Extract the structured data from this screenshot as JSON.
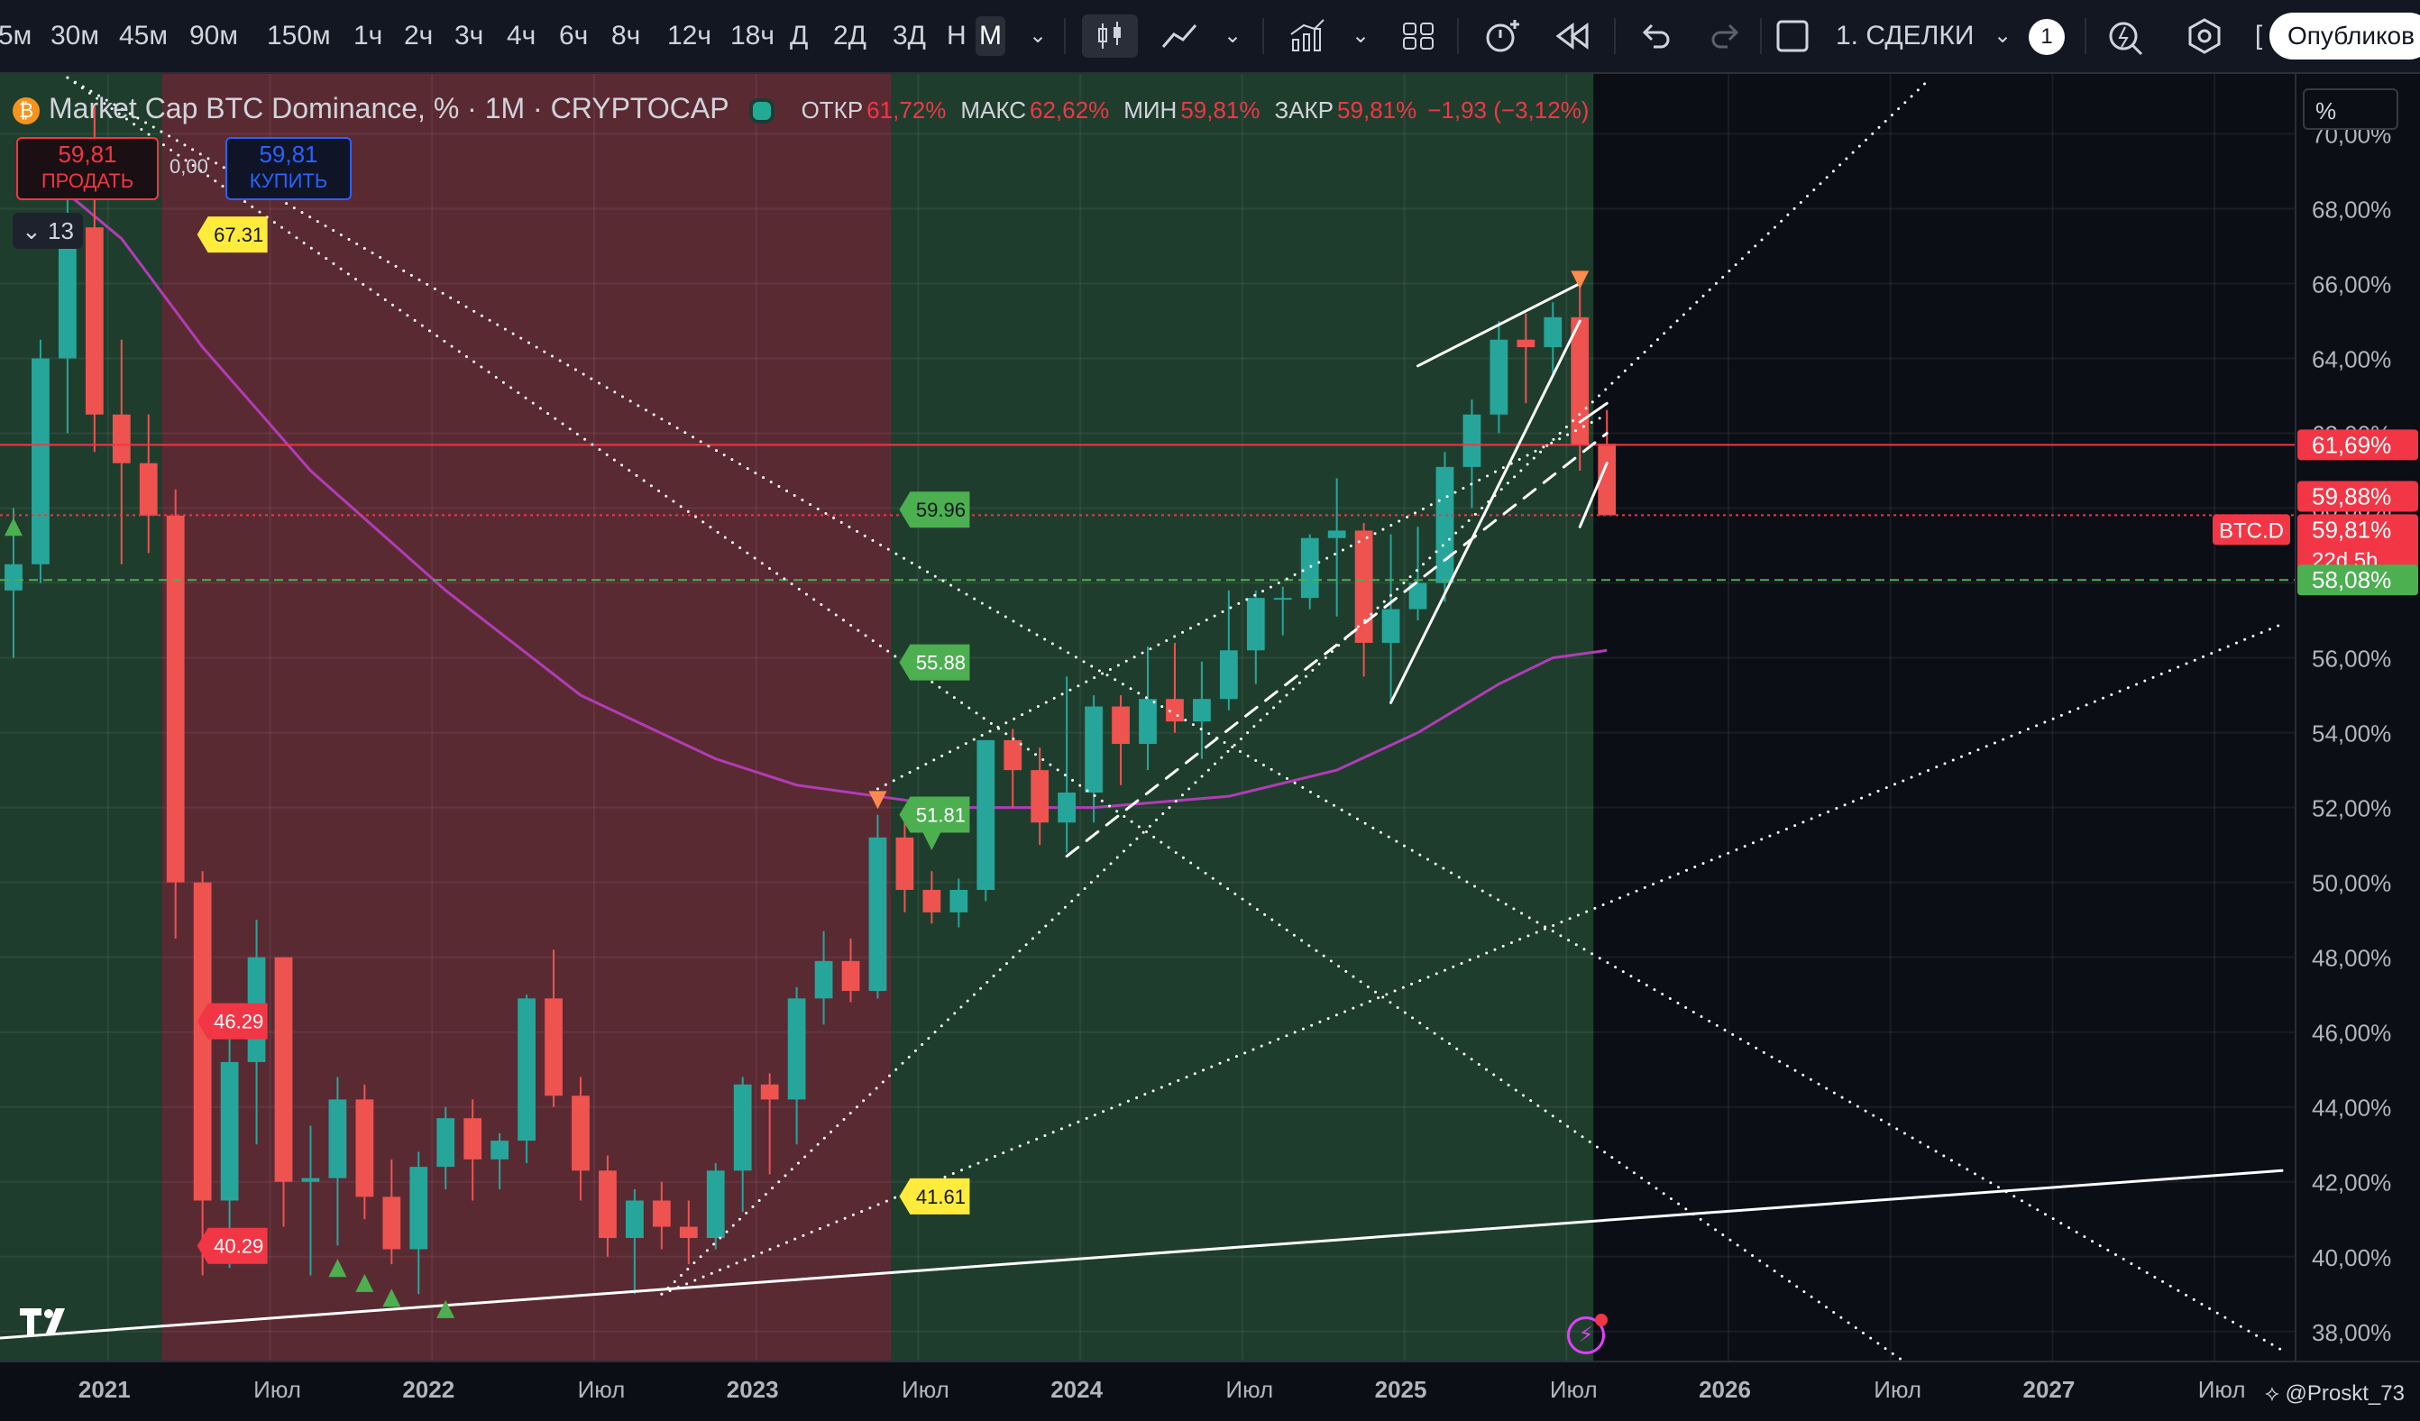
{
  "toolbar": {
    "timeframes": [
      "5м",
      "30м",
      "45м",
      "90м",
      "150м",
      "1ч",
      "2ч",
      "3ч",
      "4ч",
      "6ч",
      "8ч",
      "12ч",
      "18ч",
      "Д",
      "2Д",
      "3Д",
      "Н",
      "М"
    ],
    "active_timeframe": "М",
    "layout_name": "1. СДЕЛКИ",
    "notification_count": "1",
    "publish_label": "Опубликов"
  },
  "legend": {
    "symbol": "Market Cap BTC Dominance, % · 1M · CRYPTOCAP",
    "open_label": "ОТКР",
    "open": "61,72%",
    "high_label": "МАКС",
    "high": "62,62%",
    "low_label": "МИН",
    "low": "59,81%",
    "close_label": "ЗАКР",
    "close": "59,81%",
    "change": "−1,93 (−3,12%)"
  },
  "trade": {
    "sell_price": "59,81",
    "sell_label": "ПРОДАТЬ",
    "spread": "0,00",
    "buy_price": "59,81",
    "buy_label": "КУПИТЬ"
  },
  "indicator_count": "13",
  "unit_selector": "%",
  "watermark": "@Proskt_73",
  "chart_data": {
    "type": "candlestick",
    "title": "Market Cap BTC Dominance, % · 1M · CRYPTOCAP",
    "y_unit": "%",
    "ylim": [
      37.2,
      71.6
    ],
    "xlim": [
      "2020-09",
      "2027-09"
    ],
    "grid": true,
    "y_ticks": [
      "38,00%",
      "40,00%",
      "42,00%",
      "44,00%",
      "46,00%",
      "48,00%",
      "50,00%",
      "52,00%",
      "54,00%",
      "56,00%",
      "58,00%",
      "60,00%",
      "62,00%",
      "64,00%",
      "66,00%",
      "68,00%",
      "70,00%"
    ],
    "x_ticks": [
      {
        "date": "2021-01",
        "label": "2021"
      },
      {
        "date": "2021-07",
        "label": "Июл"
      },
      {
        "date": "2022-01",
        "label": "2022"
      },
      {
        "date": "2022-07",
        "label": "Июл"
      },
      {
        "date": "2023-01",
        "label": "2023"
      },
      {
        "date": "2023-07",
        "label": "Июл"
      },
      {
        "date": "2024-01",
        "label": "2024"
      },
      {
        "date": "2024-07",
        "label": "Июл"
      },
      {
        "date": "2025-01",
        "label": "2025"
      },
      {
        "date": "2025-07",
        "label": "Июл"
      },
      {
        "date": "2026-01",
        "label": "2026"
      },
      {
        "date": "2026-07",
        "label": "Июл"
      },
      {
        "date": "2027-01",
        "label": "2027"
      },
      {
        "date": "2027-07",
        "label": "Июл"
      }
    ],
    "candles": [
      {
        "date": "2020-09",
        "o": 57.8,
        "h": 60.0,
        "l": 56.0,
        "c": 58.5
      },
      {
        "date": "2020-10",
        "o": 58.5,
        "h": 64.5,
        "l": 58.0,
        "c": 64.0
      },
      {
        "date": "2020-11",
        "o": 64.0,
        "h": 68.5,
        "l": 62.0,
        "c": 67.5
      },
      {
        "date": "2020-12",
        "o": 67.5,
        "h": 70.8,
        "l": 61.5,
        "c": 62.5
      },
      {
        "date": "2021-01",
        "o": 62.5,
        "h": 64.5,
        "l": 58.5,
        "c": 61.2
      },
      {
        "date": "2021-02",
        "o": 61.2,
        "h": 62.5,
        "l": 58.8,
        "c": 59.8
      },
      {
        "date": "2021-03",
        "o": 59.8,
        "h": 60.5,
        "l": 48.5,
        "c": 50.0
      },
      {
        "date": "2021-04",
        "o": 50.0,
        "h": 50.3,
        "l": 39.5,
        "c": 41.5
      },
      {
        "date": "2021-05",
        "o": 41.5,
        "h": 46.3,
        "l": 39.7,
        "c": 45.2
      },
      {
        "date": "2021-06",
        "o": 45.2,
        "h": 49.0,
        "l": 43.0,
        "c": 48.0
      },
      {
        "date": "2021-07",
        "o": 48.0,
        "h": 48.0,
        "l": 40.8,
        "c": 42.0
      },
      {
        "date": "2021-08",
        "o": 42.0,
        "h": 43.5,
        "l": 39.5,
        "c": 42.1
      },
      {
        "date": "2021-09",
        "o": 42.1,
        "h": 44.8,
        "l": 40.3,
        "c": 44.2
      },
      {
        "date": "2021-10",
        "o": 44.2,
        "h": 44.6,
        "l": 41.0,
        "c": 41.6
      },
      {
        "date": "2021-11",
        "o": 41.6,
        "h": 42.6,
        "l": 39.8,
        "c": 40.2
      },
      {
        "date": "2021-12",
        "o": 40.2,
        "h": 42.8,
        "l": 39.0,
        "c": 42.4
      },
      {
        "date": "2022-01",
        "o": 42.4,
        "h": 44.0,
        "l": 41.8,
        "c": 43.7
      },
      {
        "date": "2022-02",
        "o": 43.7,
        "h": 44.2,
        "l": 41.5,
        "c": 42.6
      },
      {
        "date": "2022-03",
        "o": 42.6,
        "h": 43.3,
        "l": 41.8,
        "c": 43.1
      },
      {
        "date": "2022-04",
        "o": 43.1,
        "h": 47.0,
        "l": 42.5,
        "c": 46.9
      },
      {
        "date": "2022-05",
        "o": 46.9,
        "h": 48.2,
        "l": 44.0,
        "c": 44.3
      },
      {
        "date": "2022-06",
        "o": 44.3,
        "h": 44.8,
        "l": 41.5,
        "c": 42.3
      },
      {
        "date": "2022-07",
        "o": 42.3,
        "h": 42.7,
        "l": 40.0,
        "c": 40.5
      },
      {
        "date": "2022-08",
        "o": 40.5,
        "h": 41.8,
        "l": 39.0,
        "c": 41.5
      },
      {
        "date": "2022-09",
        "o": 41.5,
        "h": 42.0,
        "l": 40.2,
        "c": 40.8
      },
      {
        "date": "2022-10",
        "o": 40.8,
        "h": 41.5,
        "l": 39.8,
        "c": 40.5
      },
      {
        "date": "2022-11",
        "o": 40.5,
        "h": 42.5,
        "l": 40.2,
        "c": 42.3
      },
      {
        "date": "2022-12",
        "o": 42.3,
        "h": 44.8,
        "l": 41.2,
        "c": 44.6
      },
      {
        "date": "2023-01",
        "o": 44.6,
        "h": 44.9,
        "l": 42.2,
        "c": 44.2
      },
      {
        "date": "2023-02",
        "o": 44.2,
        "h": 47.2,
        "l": 43.0,
        "c": 46.9
      },
      {
        "date": "2023-03",
        "o": 46.9,
        "h": 48.7,
        "l": 46.2,
        "c": 47.9
      },
      {
        "date": "2023-04",
        "o": 47.9,
        "h": 48.5,
        "l": 46.8,
        "c": 47.1
      },
      {
        "date": "2023-05",
        "o": 47.1,
        "h": 51.8,
        "l": 46.9,
        "c": 51.2
      },
      {
        "date": "2023-06",
        "o": 51.2,
        "h": 51.8,
        "l": 49.2,
        "c": 49.8
      },
      {
        "date": "2023-07",
        "o": 49.8,
        "h": 50.3,
        "l": 48.9,
        "c": 49.2
      },
      {
        "date": "2023-08",
        "o": 49.2,
        "h": 50.1,
        "l": 48.8,
        "c": 49.8
      },
      {
        "date": "2023-09",
        "o": 49.8,
        "h": 53.8,
        "l": 49.5,
        "c": 53.8
      },
      {
        "date": "2023-10",
        "o": 53.8,
        "h": 54.1,
        "l": 52.0,
        "c": 53.0
      },
      {
        "date": "2023-11",
        "o": 53.0,
        "h": 53.6,
        "l": 51.0,
        "c": 51.6
      },
      {
        "date": "2023-12",
        "o": 51.6,
        "h": 55.5,
        "l": 50.8,
        "c": 52.4
      },
      {
        "date": "2024-01",
        "o": 52.4,
        "h": 55.0,
        "l": 51.6,
        "c": 54.7
      },
      {
        "date": "2024-02",
        "o": 54.7,
        "h": 55.0,
        "l": 52.6,
        "c": 53.7
      },
      {
        "date": "2024-03",
        "o": 53.7,
        "h": 56.3,
        "l": 53.0,
        "c": 54.9
      },
      {
        "date": "2024-04",
        "o": 54.9,
        "h": 56.4,
        "l": 54.0,
        "c": 54.3
      },
      {
        "date": "2024-05",
        "o": 54.3,
        "h": 55.9,
        "l": 53.3,
        "c": 54.9
      },
      {
        "date": "2024-06",
        "o": 54.9,
        "h": 57.8,
        "l": 54.6,
        "c": 56.2
      },
      {
        "date": "2024-07",
        "o": 56.2,
        "h": 57.8,
        "l": 55.3,
        "c": 57.6
      },
      {
        "date": "2024-08",
        "o": 57.6,
        "h": 57.9,
        "l": 56.6,
        "c": 57.6
      },
      {
        "date": "2024-09",
        "o": 57.6,
        "h": 59.3,
        "l": 57.3,
        "c": 59.2
      },
      {
        "date": "2024-10",
        "o": 59.2,
        "h": 60.8,
        "l": 57.1,
        "c": 59.4
      },
      {
        "date": "2024-11",
        "o": 59.4,
        "h": 59.6,
        "l": 55.5,
        "c": 56.4
      },
      {
        "date": "2024-12",
        "o": 56.4,
        "h": 59.3,
        "l": 54.8,
        "c": 57.3
      },
      {
        "date": "2025-01",
        "o": 57.3,
        "h": 59.5,
        "l": 57.0,
        "c": 58.0
      },
      {
        "date": "2025-02",
        "o": 58.0,
        "h": 61.5,
        "l": 57.5,
        "c": 61.1
      },
      {
        "date": "2025-03",
        "o": 61.1,
        "h": 62.9,
        "l": 60.0,
        "c": 62.5
      },
      {
        "date": "2025-04",
        "o": 62.5,
        "h": 65.0,
        "l": 62.0,
        "c": 64.5
      },
      {
        "date": "2025-05",
        "o": 64.5,
        "h": 65.2,
        "l": 62.8,
        "c": 64.3
      },
      {
        "date": "2025-06",
        "o": 64.3,
        "h": 65.5,
        "l": 63.6,
        "c": 65.1
      },
      {
        "date": "2025-07",
        "o": 65.1,
        "h": 65.9,
        "l": 61.0,
        "c": 61.7
      },
      {
        "date": "2025-08",
        "o": 61.72,
        "h": 62.62,
        "l": 59.81,
        "c": 59.81
      }
    ],
    "moving_average": {
      "color": "#b23cb6",
      "points": [
        [
          "2020-11",
          68.4
        ],
        [
          "2021-01",
          67.2
        ],
        [
          "2021-04",
          64.3
        ],
        [
          "2021-08",
          61.0
        ],
        [
          "2022-01",
          57.8
        ],
        [
          "2022-06",
          55.0
        ],
        [
          "2022-11",
          53.3
        ],
        [
          "2023-02",
          52.6
        ],
        [
          "2023-05",
          52.3
        ],
        [
          "2023-08",
          52.0
        ],
        [
          "2024-01",
          52.0
        ],
        [
          "2024-06",
          52.3
        ],
        [
          "2024-10",
          53.0
        ],
        [
          "2025-01",
          54.0
        ],
        [
          "2025-04",
          55.3
        ],
        [
          "2025-06",
          56.0
        ],
        [
          "2025-08",
          56.2
        ]
      ]
    },
    "background_zones": [
      {
        "from": "2020-08",
        "to": "2021-03",
        "color": "#1f3d2d"
      },
      {
        "from": "2021-03",
        "to": "2023-06",
        "color": "#5a2a33"
      },
      {
        "from": "2023-06",
        "to": "2025-08",
        "color": "#1f3d2d"
      }
    ],
    "horizontal_lines": [
      {
        "value": 61.69,
        "color": "#f23645",
        "style": "solid"
      },
      {
        "value": 59.81,
        "color": "#f23645",
        "style": "dotted"
      },
      {
        "value": 58.08,
        "color": "#4caf50",
        "style": "dashed"
      }
    ],
    "price_labels": [
      {
        "value": 61.69,
        "text": "61,69%",
        "color": "#f23645"
      },
      {
        "value": 59.88,
        "text": "59,88%",
        "color": "#f23645"
      },
      {
        "value": 59.81,
        "text": "59,81%",
        "color": "#f23645",
        "sub": "22d 5h",
        "tag": "BTC.D"
      },
      {
        "value": 58.08,
        "text": "58,08%",
        "color": "#4caf50"
      }
    ],
    "trendlines": [
      {
        "p1": [
          "2020-08",
          37.8
        ],
        "p2": [
          "2027-09",
          42.3
        ],
        "style": "solid",
        "width": 3
      },
      {
        "p1": [
          "2020-11",
          71.5
        ],
        "p2": [
          "2027-09",
          37.5
        ],
        "style": "dotted",
        "width": 3
      },
      {
        "p1": [
          "2022-09",
          39.0
        ],
        "p2": [
          "2026-08",
          71.5
        ],
        "style": "dotted",
        "width": 3
      },
      {
        "p1": [
          "2023-05",
          52.5
        ],
        "p2": [
          "2025-08",
          62.5
        ],
        "style": "dotted",
        "width": 3
      },
      {
        "p1": [
          "2022-09",
          39.0
        ],
        "p2": [
          "2027-09",
          56.9
        ],
        "style": "dotted",
        "width": 3
      },
      {
        "p1": [
          "2020-11",
          71.5
        ],
        "p2": [
          "2026-07",
          37.2
        ],
        "style": "dotted",
        "width": 3
      },
      {
        "p1": [
          "2023-12",
          50.7
        ],
        "p2": [
          "2025-08",
          62.0
        ],
        "style": "dashed",
        "width": 3
      },
      {
        "p1": [
          "2025-01",
          63.8
        ],
        "p2": [
          "2025-07",
          66.0
        ],
        "style": "solid",
        "width": 3
      },
      {
        "p1": [
          "2024-12",
          54.8
        ],
        "p2": [
          "2025-07",
          65.0
        ],
        "style": "solid",
        "width": 3
      },
      {
        "p1": [
          "2025-07",
          59.5
        ],
        "p2": [
          "2025-08",
          61.2
        ],
        "style": "solid",
        "width": 3
      },
      {
        "p1": [
          "2025-07",
          62.3
        ],
        "p2": [
          "2025-08",
          62.8
        ],
        "style": "solid",
        "width": 3
      }
    ],
    "level_tags": [
      {
        "date": "2021-04",
        "value": 67.31,
        "text": "67.31",
        "color": "#ffeb3b",
        "text_color": "#131722"
      },
      {
        "date": "2021-04",
        "value": 46.29,
        "text": "46.29",
        "color": "#f23645",
        "text_color": "#ffffff"
      },
      {
        "date": "2021-04",
        "value": 40.29,
        "text": "40.29",
        "color": "#f23645",
        "text_color": "#ffffff"
      },
      {
        "date": "2023-06",
        "value": 59.96,
        "text": "59.96",
        "color": "#4caf50",
        "text_color": "#131722"
      },
      {
        "date": "2023-06",
        "value": 55.88,
        "text": "55.88",
        "color": "#4caf50",
        "text_color": "#ffffff"
      },
      {
        "date": "2023-06",
        "value": 51.81,
        "text": "51.81",
        "color": "#4caf50",
        "text_color": "#ffffff"
      },
      {
        "date": "2023-06",
        "value": 41.61,
        "text": "41.61",
        "color": "#ffeb3b",
        "text_color": "#131722"
      }
    ],
    "markers": [
      {
        "date": "2020-09",
        "value": 59.5,
        "shape": "up",
        "color": "#4caf50"
      },
      {
        "date": "2021-09",
        "value": 39.7,
        "shape": "up",
        "color": "#4caf50"
      },
      {
        "date": "2021-10",
        "value": 39.3,
        "shape": "up",
        "color": "#4caf50"
      },
      {
        "date": "2021-11",
        "value": 38.9,
        "shape": "up",
        "color": "#4caf50"
      },
      {
        "date": "2022-01",
        "value": 38.6,
        "shape": "up",
        "color": "#4caf50"
      },
      {
        "date": "2023-05",
        "value": 52.2,
        "shape": "down",
        "color": "#ff8a50"
      },
      {
        "date": "2023-07",
        "value": 51.1,
        "shape": "down",
        "color": "#4caf50"
      },
      {
        "date": "2025-07",
        "value": 66.1,
        "shape": "down",
        "color": "#ff8a50"
      }
    ]
  }
}
